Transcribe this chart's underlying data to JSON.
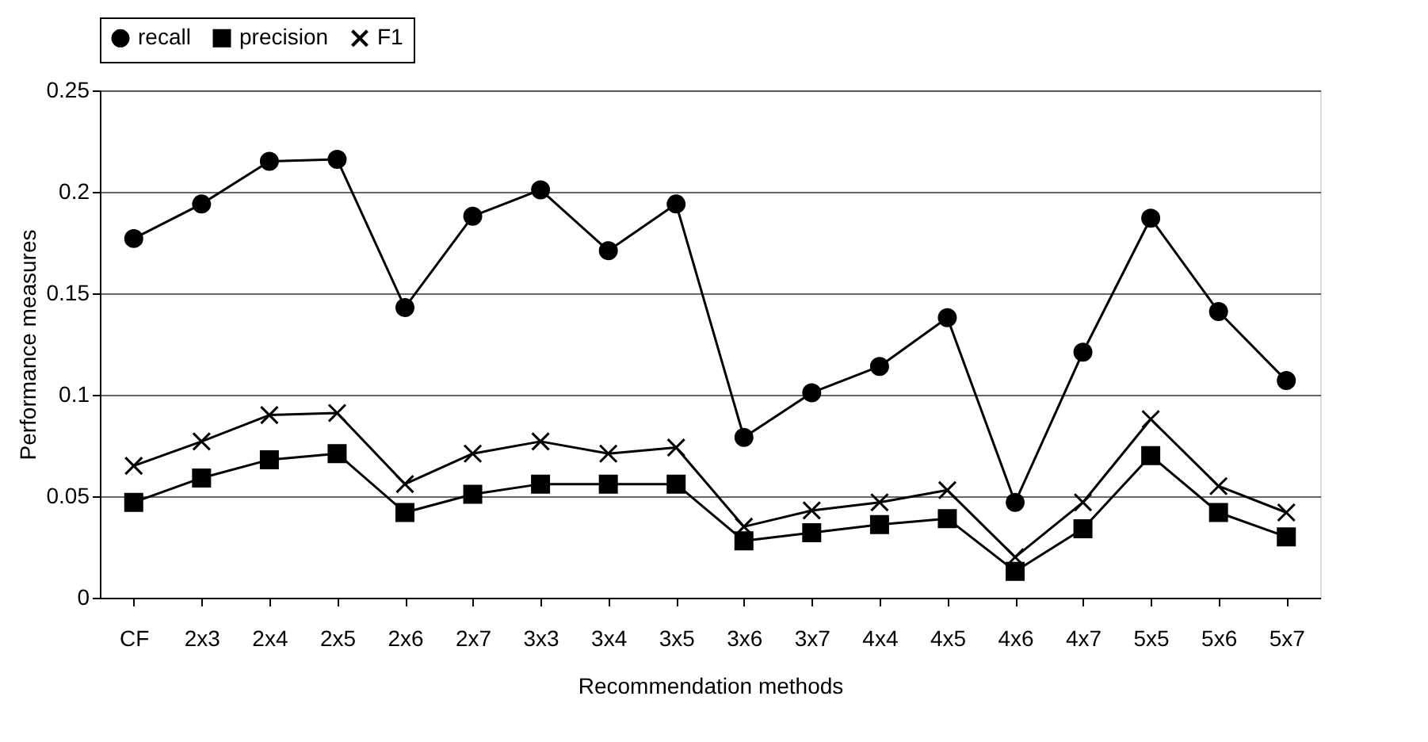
{
  "chart_data": {
    "type": "line",
    "xlabel": "Recommendation methods",
    "ylabel": "Performance measures",
    "categories": [
      "CF",
      "2x3",
      "2x4",
      "2x5",
      "2x6",
      "2x7",
      "3x3",
      "3x4",
      "3x5",
      "3x6",
      "3x7",
      "4x4",
      "4x5",
      "4x6",
      "4x7",
      "5x5",
      "5x6",
      "5x7"
    ],
    "series": [
      {
        "name": "recall",
        "color": "#000000",
        "marker": "circle",
        "values": [
          0.177,
          0.194,
          0.215,
          0.216,
          0.143,
          0.188,
          0.201,
          0.171,
          0.194,
          0.079,
          0.101,
          0.114,
          0.138,
          0.047,
          0.121,
          0.187,
          0.141,
          0.107
        ]
      },
      {
        "name": "precision",
        "color": "#000000",
        "marker": "square",
        "values": [
          0.047,
          0.059,
          0.068,
          0.071,
          0.042,
          0.051,
          0.056,
          0.056,
          0.056,
          0.028,
          0.032,
          0.036,
          0.039,
          0.013,
          0.034,
          0.07,
          0.042,
          0.03
        ]
      },
      {
        "name": "F1",
        "color": "#000000",
        "marker": "cross",
        "values": [
          0.065,
          0.077,
          0.09,
          0.091,
          0.056,
          0.071,
          0.077,
          0.071,
          0.074,
          0.035,
          0.043,
          0.047,
          0.053,
          0.02,
          0.047,
          0.088,
          0.055,
          0.042
        ]
      }
    ],
    "ylim": [
      0,
      0.25
    ],
    "yticks": [
      0,
      0.05,
      0.1,
      0.15,
      0.2,
      0.25
    ],
    "grid": "y",
    "legend": "top",
    "line_style": "solid"
  }
}
